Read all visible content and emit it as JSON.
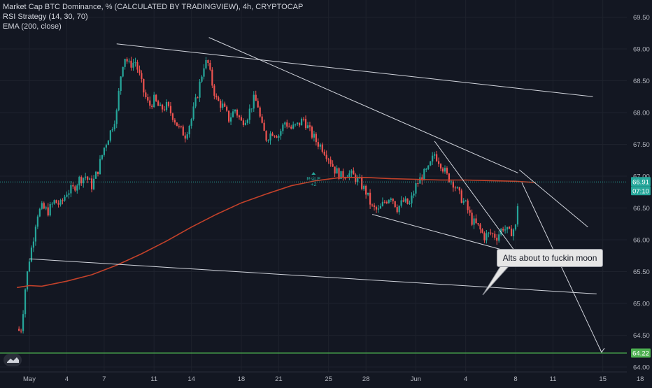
{
  "legend": {
    "title": "Market Cap BTC Dominance, % (CALCULATED BY TRADINGVIEW), 4h, CRYPTOCAP",
    "indicator1": "RSI Strategy (14, 30, 70)",
    "indicator2": "EMA (200, close)"
  },
  "annotation": {
    "text": "Alts about to fuckin moon"
  },
  "price_labels": {
    "last": "66.91",
    "countdown": "07:10",
    "level": "64.22"
  },
  "signal": {
    "label": "RsiLE",
    "qty": "+2"
  },
  "colors": {
    "background": "#131722",
    "up": "#26a69a",
    "down": "#ef5350",
    "ema": "#c2412a",
    "trendline": "#d1d4dc",
    "level": "#4caf50",
    "grid": "#1e222d"
  },
  "chart_data": {
    "type": "candlestick",
    "title": "Market Cap BTC Dominance, % (CALCULATED BY TRADINGVIEW), 4h, CRYPTOCAP",
    "x_ticks": [
      "May",
      "4",
      "7",
      "11",
      "14",
      "18",
      "21",
      "25",
      "28",
      "Jun",
      "4",
      "8",
      "11",
      "15",
      "18"
    ],
    "y_ticks": [
      "69.50",
      "69.00",
      "68.50",
      "68.00",
      "67.50",
      "67.00",
      "66.50",
      "66.00",
      "65.50",
      "65.00",
      "64.50",
      "64.00"
    ],
    "ylim": [
      63.85,
      69.7
    ],
    "xlim_days": [
      -1.1,
      48.4
    ],
    "price_path": [
      [
        -1.0,
        64.6
      ],
      [
        -0.7,
        64.55
      ],
      [
        -0.5,
        64.9
      ],
      [
        -0.3,
        65.3
      ],
      [
        0.0,
        65.7
      ],
      [
        0.3,
        66.0
      ],
      [
        0.6,
        66.4
      ],
      [
        1.0,
        66.5
      ],
      [
        1.5,
        66.45
      ],
      [
        2.0,
        66.6
      ],
      [
        2.5,
        66.55
      ],
      [
        3.0,
        66.75
      ],
      [
        3.5,
        66.8
      ],
      [
        4.0,
        66.95
      ],
      [
        4.5,
        67.0
      ],
      [
        5.0,
        66.85
      ],
      [
        5.5,
        67.1
      ],
      [
        6.0,
        67.45
      ],
      [
        6.5,
        67.7
      ],
      [
        7.0,
        68.0
      ],
      [
        7.3,
        68.55
      ],
      [
        7.6,
        68.9
      ],
      [
        8.0,
        68.75
      ],
      [
        8.5,
        68.8
      ],
      [
        8.8,
        68.6
      ],
      [
        9.2,
        68.3
      ],
      [
        9.6,
        68.1
      ],
      [
        10.0,
        68.2
      ],
      [
        10.5,
        68.05
      ],
      [
        11.0,
        68.1
      ],
      [
        11.5,
        67.95
      ],
      [
        12.0,
        67.75
      ],
      [
        12.5,
        67.65
      ],
      [
        13.0,
        67.9
      ],
      [
        13.5,
        68.3
      ],
      [
        14.0,
        68.75
      ],
      [
        14.3,
        68.8
      ],
      [
        14.6,
        68.5
      ],
      [
        15.0,
        68.2
      ],
      [
        15.5,
        68.1
      ],
      [
        16.0,
        67.9
      ],
      [
        16.5,
        68.05
      ],
      [
        17.0,
        67.85
      ],
      [
        17.5,
        67.95
      ],
      [
        18.0,
        68.2
      ],
      [
        18.3,
        68.15
      ],
      [
        18.6,
        67.8
      ],
      [
        19.0,
        67.6
      ],
      [
        19.5,
        67.7
      ],
      [
        20.0,
        67.65
      ],
      [
        20.5,
        67.85
      ],
      [
        21.0,
        67.75
      ],
      [
        21.5,
        67.8
      ],
      [
        22.0,
        67.9
      ],
      [
        22.5,
        67.7
      ],
      [
        23.0,
        67.55
      ],
      [
        23.5,
        67.45
      ],
      [
        24.0,
        67.3
      ],
      [
        24.5,
        67.1
      ],
      [
        25.0,
        67.0
      ],
      [
        25.5,
        67.05
      ],
      [
        26.0,
        67.0
      ],
      [
        26.5,
        66.9
      ],
      [
        27.0,
        66.75
      ],
      [
        27.5,
        66.5
      ],
      [
        28.0,
        66.45
      ],
      [
        28.5,
        66.6
      ],
      [
        29.0,
        66.7
      ],
      [
        29.5,
        66.5
      ],
      [
        30.0,
        66.6
      ],
      [
        30.5,
        66.55
      ],
      [
        31.0,
        66.85
      ],
      [
        31.5,
        67.0
      ],
      [
        32.0,
        67.1
      ],
      [
        32.5,
        67.35
      ],
      [
        33.0,
        67.2
      ],
      [
        33.5,
        67.0
      ],
      [
        34.0,
        66.9
      ],
      [
        34.5,
        66.7
      ],
      [
        35.0,
        66.55
      ],
      [
        35.5,
        66.3
      ],
      [
        36.0,
        66.2
      ],
      [
        36.5,
        66.05
      ],
      [
        37.0,
        66.1
      ],
      [
        37.5,
        66.05
      ],
      [
        38.0,
        66.2
      ],
      [
        38.5,
        66.1
      ],
      [
        39.0,
        66.2
      ],
      [
        39.3,
        66.85
      ]
    ],
    "ema_path": [
      [
        -1.0,
        65.25
      ],
      [
        0.0,
        65.28
      ],
      [
        1.0,
        65.27
      ],
      [
        3.0,
        65.35
      ],
      [
        5.0,
        65.45
      ],
      [
        7.0,
        65.6
      ],
      [
        9.0,
        65.78
      ],
      [
        11.0,
        65.98
      ],
      [
        13.0,
        66.2
      ],
      [
        15.0,
        66.4
      ],
      [
        17.0,
        66.58
      ],
      [
        19.0,
        66.72
      ],
      [
        21.0,
        66.85
      ],
      [
        23.0,
        66.93
      ],
      [
        25.0,
        66.98
      ],
      [
        27.0,
        66.98
      ],
      [
        29.0,
        66.96
      ],
      [
        31.0,
        66.95
      ],
      [
        33.0,
        66.94
      ],
      [
        35.0,
        66.94
      ],
      [
        37.0,
        66.93
      ],
      [
        39.0,
        66.92
      ],
      [
        40.6,
        66.9
      ]
    ],
    "trendlines": [
      [
        [
          7.0,
          69.08
        ],
        [
          45.2,
          68.25
        ]
      ],
      [
        [
          14.4,
          69.18
        ],
        [
          39.2,
          67.05
        ]
      ],
      [
        [
          39.3,
          67.1
        ],
        [
          44.8,
          66.2
        ]
      ],
      [
        [
          32.5,
          67.55
        ],
        [
          39.1,
          65.78
        ]
      ],
      [
        [
          27.5,
          66.4
        ],
        [
          39.1,
          65.78
        ]
      ],
      [
        [
          0.0,
          65.7
        ],
        [
          45.5,
          65.15
        ]
      ],
      [
        [
          39.5,
          66.9
        ],
        [
          45.9,
          64.23
        ]
      ]
    ],
    "horizontal_level": 64.22,
    "last_value": 66.91
  }
}
